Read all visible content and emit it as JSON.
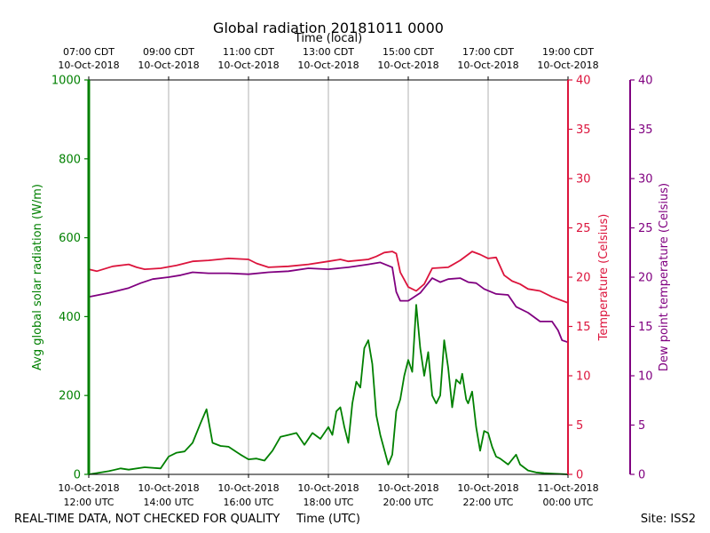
{
  "chart_data": {
    "type": "line",
    "title": "Global radiation 20181011 0000",
    "top_axis_title": "Time (local)",
    "xlabel": "Time (UTC)",
    "xlim_hours_utc": [
      12,
      24
    ],
    "x_ticks_utc": [
      {
        "hour": 12,
        "line1": "10-Oct-2018",
        "line2": "12:00 UTC"
      },
      {
        "hour": 14,
        "line1": "10-Oct-2018",
        "line2": "14:00 UTC"
      },
      {
        "hour": 16,
        "line1": "10-Oct-2018",
        "line2": "16:00 UTC"
      },
      {
        "hour": 18,
        "line1": "10-Oct-2018",
        "line2": "18:00 UTC"
      },
      {
        "hour": 20,
        "line1": "10-Oct-2018",
        "line2": "20:00 UTC"
      },
      {
        "hour": 22,
        "line1": "10-Oct-2018",
        "line2": "22:00 UTC"
      },
      {
        "hour": 24,
        "line1": "11-Oct-2018",
        "line2": "00:00 UTC"
      }
    ],
    "x_ticks_local": [
      {
        "hour": 12,
        "line1": "07:00 CDT",
        "line2": "10-Oct-2018"
      },
      {
        "hour": 14,
        "line1": "09:00 CDT",
        "line2": "10-Oct-2018"
      },
      {
        "hour": 16,
        "line1": "11:00 CDT",
        "line2": "10-Oct-2018"
      },
      {
        "hour": 18,
        "line1": "13:00 CDT",
        "line2": "10-Oct-2018"
      },
      {
        "hour": 20,
        "line1": "15:00 CDT",
        "line2": "10-Oct-2018"
      },
      {
        "hour": 22,
        "line1": "17:00 CDT",
        "line2": "10-Oct-2018"
      },
      {
        "hour": 24,
        "line1": "19:00 CDT",
        "line2": "10-Oct-2018"
      }
    ],
    "axes": {
      "radiation": {
        "label": "Avg global solar radiation (W/m)",
        "ylim": [
          0,
          1000
        ],
        "ticks": [
          0,
          200,
          400,
          600,
          800,
          1000
        ],
        "color": "#008000"
      },
      "temperature": {
        "label": "Temperature (Celsius)",
        "ylim": [
          0,
          40
        ],
        "ticks": [
          0,
          5,
          10,
          15,
          20,
          25,
          30,
          35,
          40
        ],
        "color": "#dc143c"
      },
      "dewpoint": {
        "label": "Dew point temperature (Celsius)",
        "ylim": [
          0,
          40
        ],
        "ticks": [
          0,
          5,
          10,
          15,
          20,
          25,
          30,
          35,
          40
        ],
        "color": "#800080"
      }
    },
    "series": [
      {
        "name": "Avg global solar radiation",
        "axis": "radiation",
        "color": "#008000",
        "x": [
          12.0,
          12.5,
          12.8,
          13.0,
          13.4,
          13.8,
          14.0,
          14.2,
          14.4,
          14.6,
          14.8,
          14.95,
          15.1,
          15.3,
          15.5,
          15.8,
          16.0,
          16.2,
          16.4,
          16.6,
          16.8,
          17.0,
          17.2,
          17.4,
          17.6,
          17.8,
          18.0,
          18.1,
          18.2,
          18.3,
          18.4,
          18.5,
          18.6,
          18.7,
          18.8,
          18.9,
          19.0,
          19.1,
          19.2,
          19.3,
          19.5,
          19.6,
          19.7,
          19.8,
          19.9,
          20.0,
          20.1,
          20.2,
          20.3,
          20.4,
          20.5,
          20.6,
          20.7,
          20.8,
          20.9,
          21.0,
          21.1,
          21.2,
          21.3,
          21.35,
          21.45,
          21.5,
          21.6,
          21.7,
          21.8,
          21.9,
          22.0,
          22.1,
          22.2,
          22.3,
          22.5,
          22.7,
          22.8,
          23.0,
          23.2,
          23.4,
          23.6,
          24.0
        ],
        "values": [
          0,
          8,
          15,
          12,
          18,
          15,
          45,
          55,
          58,
          80,
          130,
          165,
          80,
          72,
          70,
          50,
          38,
          40,
          35,
          60,
          95,
          100,
          105,
          75,
          105,
          90,
          120,
          100,
          160,
          170,
          120,
          80,
          180,
          235,
          220,
          320,
          340,
          280,
          150,
          100,
          25,
          50,
          160,
          190,
          250,
          290,
          260,
          430,
          320,
          250,
          310,
          200,
          180,
          200,
          340,
          270,
          170,
          240,
          230,
          255,
          190,
          180,
          210,
          120,
          60,
          110,
          105,
          70,
          45,
          40,
          25,
          50,
          25,
          10,
          5,
          3,
          2,
          0
        ]
      },
      {
        "name": "Temperature",
        "axis": "temperature",
        "color": "#dc143c",
        "x": [
          12.0,
          12.2,
          12.6,
          13.0,
          13.2,
          13.4,
          13.8,
          14.2,
          14.6,
          15.0,
          15.5,
          16.0,
          16.2,
          16.5,
          17.0,
          17.5,
          18.0,
          18.3,
          18.5,
          19.0,
          19.2,
          19.4,
          19.6,
          19.7,
          19.8,
          20.0,
          20.2,
          20.4,
          20.6,
          21.0,
          21.3,
          21.6,
          21.8,
          22.0,
          22.2,
          22.4,
          22.6,
          22.8,
          23.0,
          23.3,
          23.6,
          24.0
        ],
        "values": [
          20.8,
          20.6,
          21.1,
          21.3,
          21.0,
          20.8,
          20.9,
          21.2,
          21.6,
          21.7,
          21.9,
          21.8,
          21.4,
          21.0,
          21.1,
          21.3,
          21.6,
          21.8,
          21.6,
          21.8,
          22.1,
          22.5,
          22.6,
          22.4,
          20.5,
          19.0,
          18.6,
          19.3,
          20.9,
          21.0,
          21.7,
          22.6,
          22.3,
          21.9,
          22.0,
          20.2,
          19.6,
          19.3,
          18.8,
          18.6,
          18.0,
          17.4
        ]
      },
      {
        "name": "Dew point temperature",
        "axis": "dewpoint",
        "color": "#800080",
        "x": [
          12.0,
          12.5,
          13.0,
          13.3,
          13.6,
          14.0,
          14.3,
          14.6,
          15.0,
          15.5,
          16.0,
          16.5,
          17.0,
          17.5,
          18.0,
          18.5,
          19.0,
          19.3,
          19.6,
          19.7,
          19.8,
          20.0,
          20.3,
          20.6,
          20.8,
          21.0,
          21.3,
          21.5,
          21.7,
          21.9,
          22.2,
          22.5,
          22.7,
          23.0,
          23.3,
          23.6,
          23.75,
          23.85,
          24.0
        ],
        "values": [
          18.0,
          18.4,
          18.9,
          19.4,
          19.8,
          20.0,
          20.2,
          20.5,
          20.4,
          20.4,
          20.3,
          20.5,
          20.6,
          20.9,
          20.8,
          21.0,
          21.3,
          21.5,
          21.0,
          18.5,
          17.6,
          17.6,
          18.4,
          19.9,
          19.5,
          19.8,
          19.9,
          19.5,
          19.4,
          18.8,
          18.3,
          18.2,
          17.0,
          16.4,
          15.5,
          15.5,
          14.6,
          13.6,
          13.4
        ]
      }
    ]
  },
  "footer": {
    "left": "REAL-TIME DATA, NOT CHECKED FOR QUALITY",
    "right": "Site: ISS2"
  }
}
